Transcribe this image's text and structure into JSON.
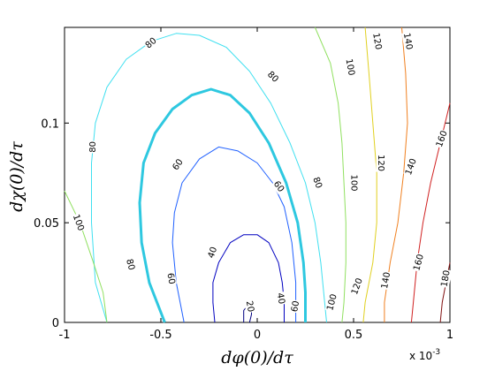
{
  "chart_data": {
    "type": "contour",
    "xlabel": "dφ(0)/dτ",
    "ylabel": "dχ(0)/dτ",
    "x_exponent_label": "x 10",
    "x_exponent_power": "-3",
    "xlim": [
      -1,
      1
    ],
    "ylim": [
      0,
      0.148
    ],
    "x_ticks": [
      -1,
      -0.5,
      0,
      0.5,
      1
    ],
    "x_tick_labels": [
      "-1",
      "-0.5",
      "0",
      "0.5",
      "1"
    ],
    "y_ticks": [
      0,
      0.05,
      0.1
    ],
    "y_tick_labels": [
      "0",
      "0.05",
      "0.1"
    ],
    "grid": false,
    "contours": [
      {
        "level": "20",
        "color": "#000080",
        "width": 1,
        "points": [
          [
            -0.07,
            0.0
          ],
          [
            -0.07,
            0.006
          ],
          [
            -0.03,
            0.011
          ],
          [
            -0.03,
            0.004
          ],
          [
            -0.04,
            0.0
          ]
        ]
      },
      {
        "level": "40",
        "color": "#0000c0",
        "width": 1,
        "points": [
          [
            -0.22,
            0.0
          ],
          [
            -0.23,
            0.01
          ],
          [
            -0.23,
            0.02
          ],
          [
            -0.2,
            0.03
          ],
          [
            -0.14,
            0.04
          ],
          [
            -0.07,
            0.044
          ],
          [
            0.0,
            0.044
          ],
          [
            0.06,
            0.04
          ],
          [
            0.11,
            0.03
          ],
          [
            0.13,
            0.02
          ],
          [
            0.14,
            0.01
          ],
          [
            0.14,
            0.0
          ]
        ]
      },
      {
        "level": "60",
        "color": "#1f60ff",
        "width": 1,
        "points": [
          [
            -0.38,
            0.0
          ],
          [
            -0.42,
            0.02
          ],
          [
            -0.44,
            0.04
          ],
          [
            -0.43,
            0.055
          ],
          [
            -0.39,
            0.07
          ],
          [
            -0.3,
            0.082
          ],
          [
            -0.2,
            0.088
          ],
          [
            -0.1,
            0.086
          ],
          [
            0.0,
            0.08
          ],
          [
            0.08,
            0.07
          ],
          [
            0.14,
            0.058
          ],
          [
            0.18,
            0.04
          ],
          [
            0.2,
            0.02
          ],
          [
            0.2,
            0.0
          ]
        ]
      },
      {
        "level": "80",
        "color": "#2ec8e0",
        "width": 3,
        "points": [
          [
            -0.48,
            0.0
          ],
          [
            -0.56,
            0.02
          ],
          [
            -0.6,
            0.04
          ],
          [
            -0.61,
            0.06
          ],
          [
            -0.59,
            0.08
          ],
          [
            -0.53,
            0.095
          ],
          [
            -0.44,
            0.107
          ],
          [
            -0.34,
            0.114
          ],
          [
            -0.24,
            0.117
          ],
          [
            -0.14,
            0.114
          ],
          [
            -0.04,
            0.105
          ],
          [
            0.06,
            0.09
          ],
          [
            0.15,
            0.07
          ],
          [
            0.21,
            0.05
          ],
          [
            0.24,
            0.03
          ],
          [
            0.25,
            0.015
          ],
          [
            0.25,
            0.0
          ]
        ]
      },
      {
        "level": "80",
        "color": "#40e0f0",
        "width": 1,
        "points": [
          [
            -0.78,
            0.0
          ],
          [
            -0.84,
            0.02
          ],
          [
            -0.86,
            0.05
          ],
          [
            -0.86,
            0.08
          ],
          [
            -0.84,
            0.1
          ],
          [
            -0.78,
            0.118
          ],
          [
            -0.68,
            0.132
          ],
          [
            -0.55,
            0.141
          ],
          [
            -0.42,
            0.145
          ],
          [
            -0.3,
            0.144
          ],
          [
            -0.16,
            0.138
          ],
          [
            -0.04,
            0.126
          ],
          [
            0.07,
            0.11
          ],
          [
            0.17,
            0.09
          ],
          [
            0.25,
            0.07
          ],
          [
            0.3,
            0.05
          ],
          [
            0.33,
            0.03
          ],
          [
            0.35,
            0.01
          ],
          [
            0.36,
            0.0
          ]
        ]
      },
      {
        "level": "100",
        "color": "#90e060",
        "width": 1,
        "points": [
          [
            -1.0,
            0.066
          ],
          [
            -0.92,
            0.05
          ],
          [
            -0.85,
            0.03
          ],
          [
            -0.8,
            0.015
          ],
          [
            -0.78,
            0.0
          ]
        ]
      },
      {
        "level": "100",
        "color": "#90e060",
        "width": 1,
        "points": [
          [
            0.3,
            0.148
          ],
          [
            0.38,
            0.13
          ],
          [
            0.42,
            0.11
          ],
          [
            0.44,
            0.09
          ],
          [
            0.45,
            0.07
          ],
          [
            0.46,
            0.05
          ],
          [
            0.46,
            0.03
          ],
          [
            0.45,
            0.01
          ],
          [
            0.44,
            0.0
          ]
        ]
      },
      {
        "level": "120",
        "color": "#e0d020",
        "width": 1,
        "points": [
          [
            0.56,
            0.148
          ],
          [
            0.58,
            0.125
          ],
          [
            0.6,
            0.1
          ],
          [
            0.62,
            0.075
          ],
          [
            0.62,
            0.05
          ],
          [
            0.6,
            0.03
          ],
          [
            0.56,
            0.01
          ],
          [
            0.55,
            0.0
          ]
        ]
      },
      {
        "level": "140",
        "color": "#f08020",
        "width": 1,
        "points": [
          [
            0.75,
            0.148
          ],
          [
            0.77,
            0.125
          ],
          [
            0.78,
            0.1
          ],
          [
            0.76,
            0.075
          ],
          [
            0.73,
            0.05
          ],
          [
            0.69,
            0.03
          ],
          [
            0.66,
            0.01
          ],
          [
            0.66,
            0.0
          ]
        ]
      },
      {
        "level": "160",
        "color": "#d02020",
        "width": 1,
        "points": [
          [
            1.0,
            0.11
          ],
          [
            0.95,
            0.09
          ],
          [
            0.9,
            0.07
          ],
          [
            0.86,
            0.05
          ],
          [
            0.83,
            0.03
          ],
          [
            0.81,
            0.01
          ],
          [
            0.8,
            0.0
          ]
        ]
      },
      {
        "level": "180",
        "color": "#801010",
        "width": 1,
        "points": [
          [
            1.0,
            0.03
          ],
          [
            0.98,
            0.02
          ],
          [
            0.96,
            0.01
          ],
          [
            0.95,
            0.0
          ]
        ]
      }
    ],
    "contour_labels": [
      {
        "text": "20",
        "x": -0.04,
        "y": 0.008,
        "rotate": 80
      },
      {
        "text": "40",
        "x": -0.23,
        "y": 0.035,
        "rotate": -70
      },
      {
        "text": "40",
        "x": 0.12,
        "y": 0.012,
        "rotate": 80
      },
      {
        "text": "60",
        "x": -0.41,
        "y": 0.079,
        "rotate": -55
      },
      {
        "text": "60",
        "x": 0.11,
        "y": 0.068,
        "rotate": 55
      },
      {
        "text": "60",
        "x": -0.45,
        "y": 0.022,
        "rotate": 80
      },
      {
        "text": "60",
        "x": 0.2,
        "y": 0.008,
        "rotate": -80
      },
      {
        "text": "80",
        "x": -0.55,
        "y": 0.14,
        "rotate": -40
      },
      {
        "text": "80",
        "x": 0.08,
        "y": 0.123,
        "rotate": 45
      },
      {
        "text": "80",
        "x": -0.85,
        "y": 0.088,
        "rotate": -90
      },
      {
        "text": "80",
        "x": -0.66,
        "y": 0.029,
        "rotate": 75
      },
      {
        "text": "80",
        "x": 0.31,
        "y": 0.07,
        "rotate": 70
      },
      {
        "text": "100",
        "x": 0.48,
        "y": 0.128,
        "rotate": 80
      },
      {
        "text": "100",
        "x": 0.5,
        "y": 0.07,
        "rotate": 90
      },
      {
        "text": "100",
        "x": 0.39,
        "y": 0.01,
        "rotate": -75
      },
      {
        "text": "100",
        "x": -0.93,
        "y": 0.05,
        "rotate": 70
      },
      {
        "text": "120",
        "x": 0.62,
        "y": 0.141,
        "rotate": 80
      },
      {
        "text": "120",
        "x": 0.64,
        "y": 0.08,
        "rotate": 90
      },
      {
        "text": "120",
        "x": 0.52,
        "y": 0.018,
        "rotate": -70
      },
      {
        "text": "140",
        "x": 0.78,
        "y": 0.141,
        "rotate": 80
      },
      {
        "text": "140",
        "x": 0.8,
        "y": 0.078,
        "rotate": -70
      },
      {
        "text": "140",
        "x": 0.67,
        "y": 0.021,
        "rotate": -80
      },
      {
        "text": "160",
        "x": 0.96,
        "y": 0.092,
        "rotate": -70
      },
      {
        "text": "160",
        "x": 0.84,
        "y": 0.03,
        "rotate": -75
      },
      {
        "text": "180",
        "x": 0.98,
        "y": 0.022,
        "rotate": -80
      }
    ]
  }
}
